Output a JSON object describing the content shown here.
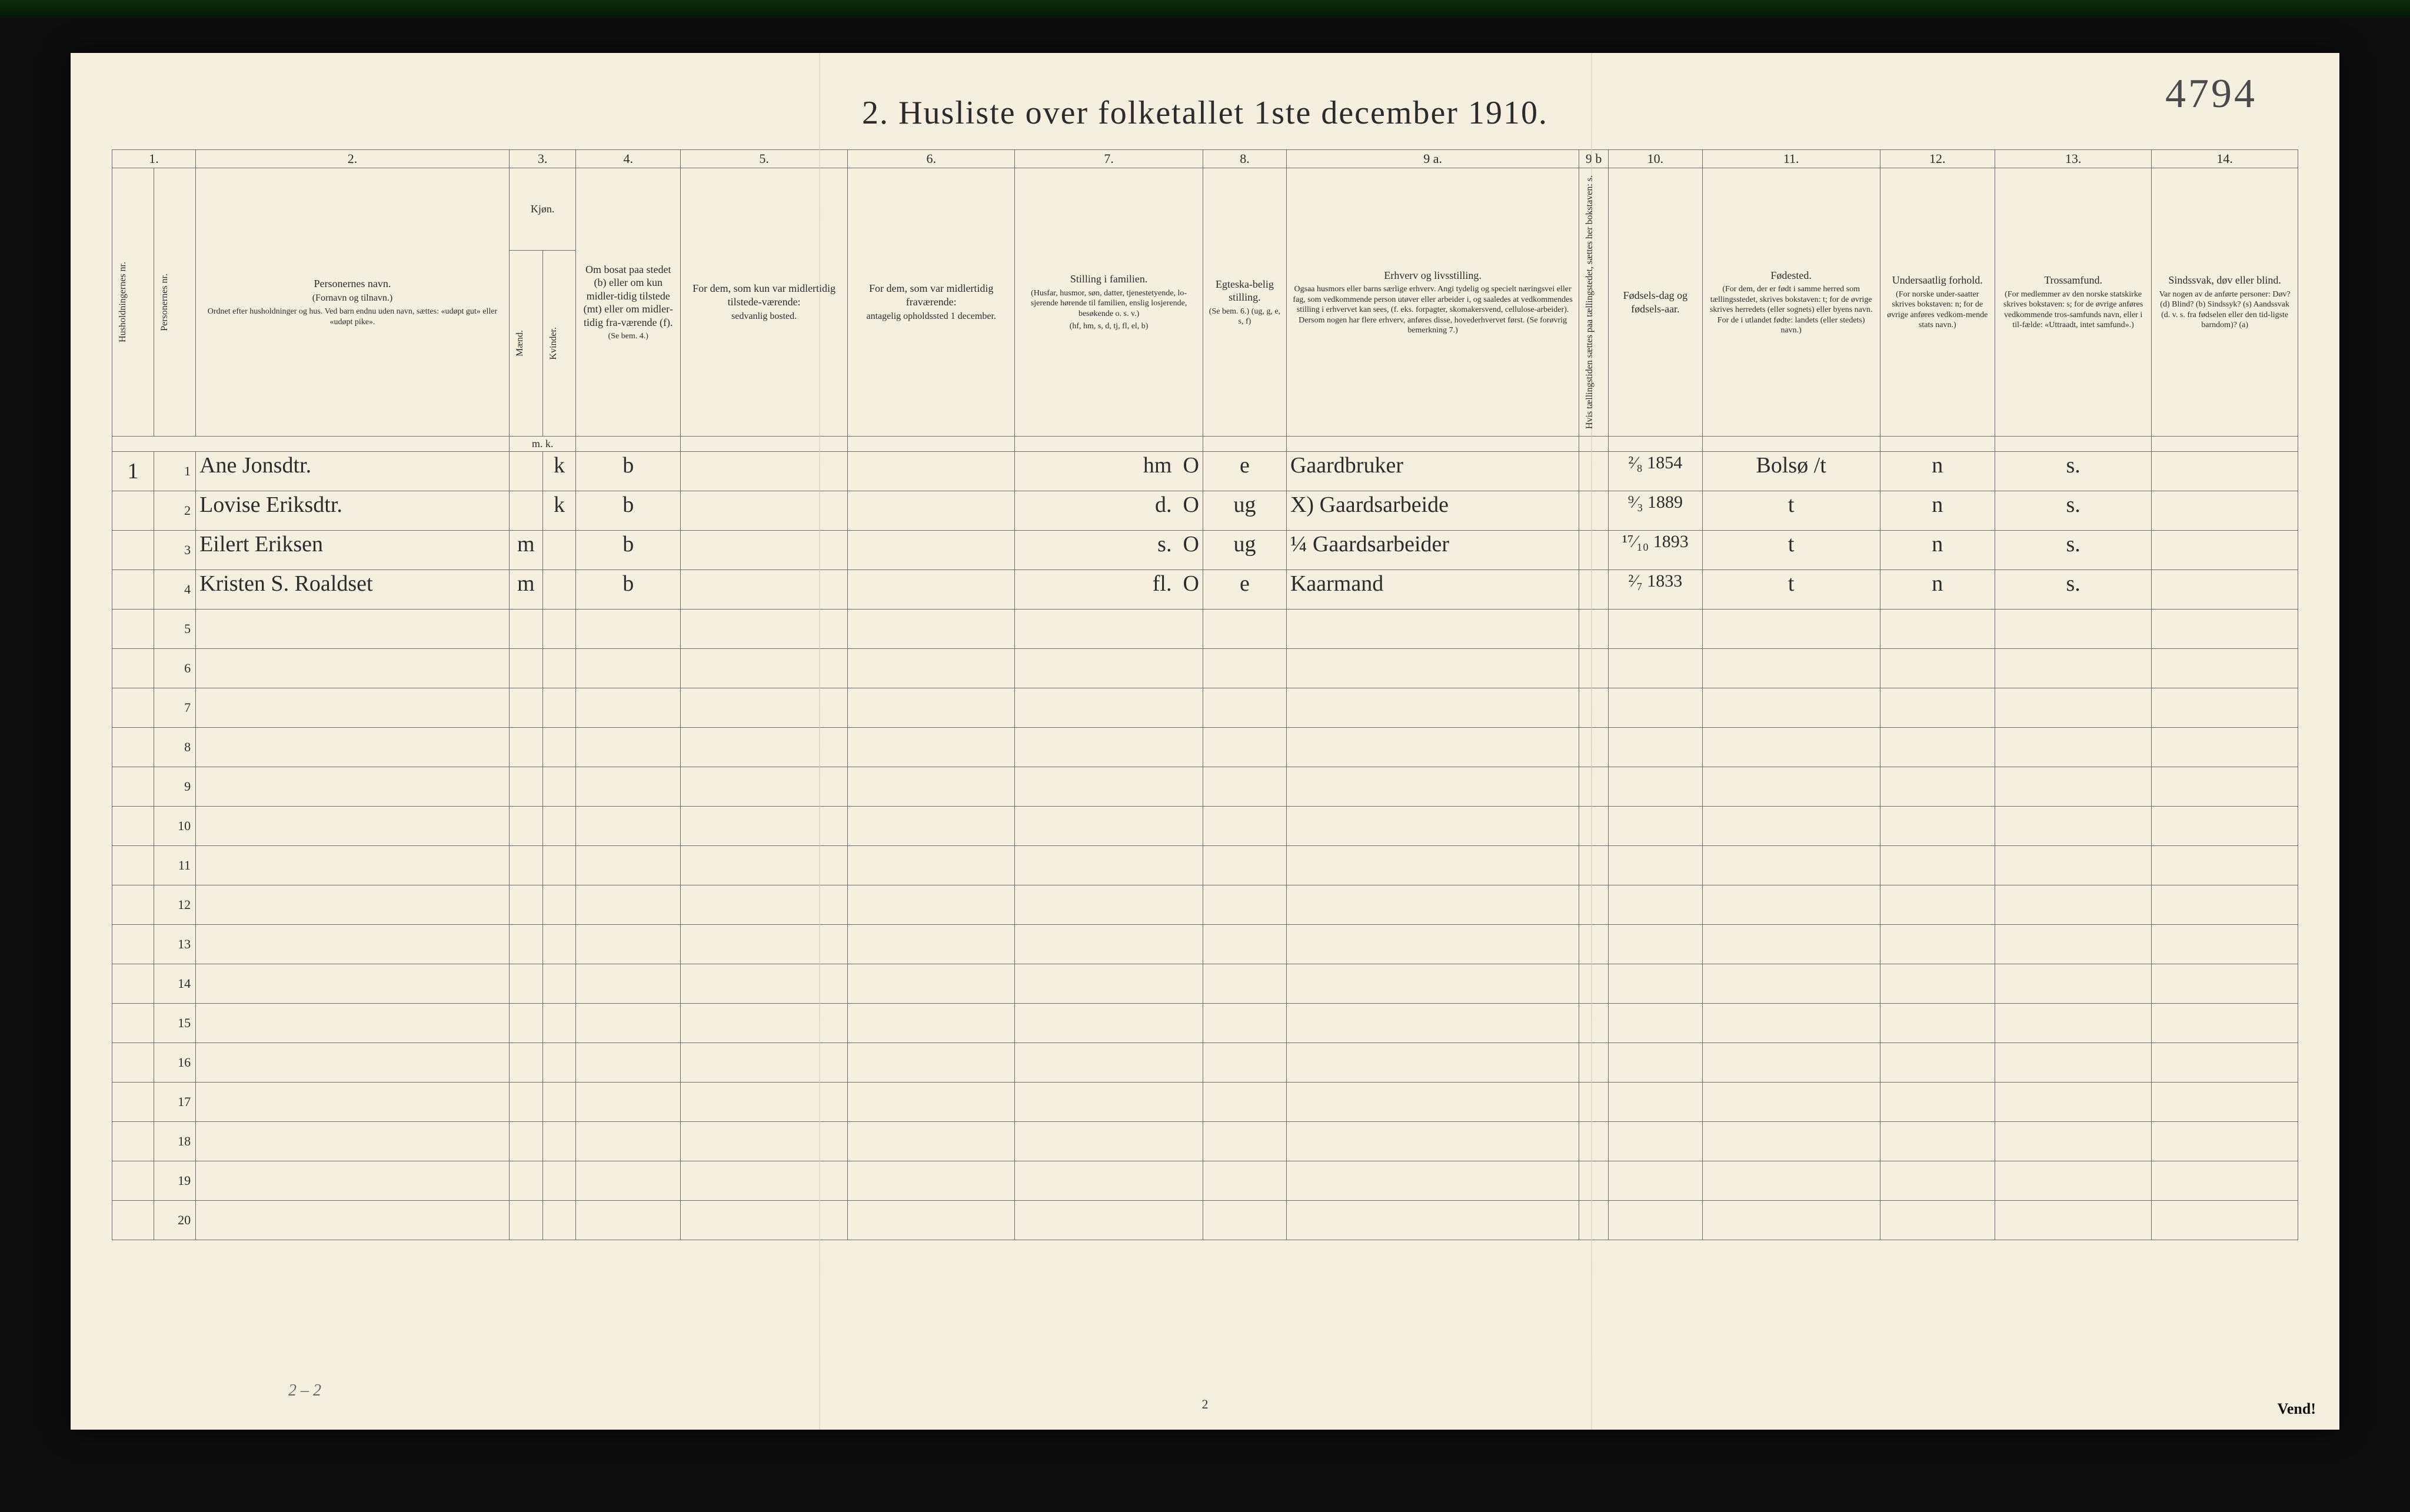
{
  "page": {
    "title": "2.  Husliste over folketallet 1ste december 1910.",
    "handnote_top_right": "4794",
    "foot_page_number": "2",
    "foot_pencil": "2 – 2",
    "vend": "Vend!"
  },
  "colnums": [
    "1.",
    "2.",
    "3.",
    "4.",
    "5.",
    "6.",
    "7.",
    "8.",
    "9 a.",
    "9 b",
    "10.",
    "11.",
    "12.",
    "13.",
    "14."
  ],
  "headers": {
    "h1": "Husholdningernes nr.",
    "h1b": "Personernes nr.",
    "h2": "Personernes navn.",
    "h2_sub1": "(Fornavn og tilnavn.)",
    "h2_sub2": "Ordnet efter husholdninger og hus. Ved barn endnu uden navn, sættes: «udøpt gut» eller «udøpt pike».",
    "h3": "Kjøn.",
    "h3_m": "Mænd.",
    "h3_k": "Kvinder.",
    "h3_mk": "m.  k.",
    "h4": "Om bosat paa stedet (b) eller om kun midler-tidig tilstede (mt) eller om midler-tidig fra-værende (f).",
    "h4_sub": "(Se bem. 4.)",
    "h5": "For dem, som kun var midlertidig tilstede-værende:",
    "h5_sub": "sedvanlig bosted.",
    "h6": "For dem, som var midlertidig fraværende:",
    "h6_sub": "antagelig opholdssted 1 december.",
    "h7": "Stilling i familien.",
    "h7_sub1": "(Husfar, husmor, søn, datter, tjenestetyende, lo-sjerende hørende til familien, enslig losjerende, besøkende o. s. v.)",
    "h7_sub2": "(hf, hm, s, d, tj, fl, el, b)",
    "h8": "Egteska-belig stilling.",
    "h8_sub": "(Se bem. 6.) (ug, g, e, s, f)",
    "h9a": "Erhverv og livsstilling.",
    "h9a_sub": "Ogsaa husmors eller barns særlige erhverv. Angi tydelig og specielt næringsvei eller fag, som vedkommende person utøver eller arbeider i, og saaledes at vedkommendes stilling i erhvervet kan sees, (f. eks. forpagter, skomakersvend, cellulose-arbeider). Dersom nogen har flere erhverv, anføres disse, hovederhvervet først.  (Se forøvrig bemerkning 7.)",
    "h9b": "Hvis tællingstiden sættes paa tællingstedet, sættes her bokstaven: s.",
    "h10": "Fødsels-dag og fødsels-aar.",
    "h11": "Fødested.",
    "h11_sub": "(For dem, der er født i samme herred som tællingsstedet, skrives bokstaven: t; for de øvrige skrives herredets (eller sognets) eller byens navn. For de i utlandet fødte: landets (eller stedets) navn.)",
    "h12": "Undersaatlig forhold.",
    "h12_sub": "(For norske under-saatter skrives bokstaven: n; for de øvrige anføres vedkom-mende stats navn.)",
    "h13": "Trossamfund.",
    "h13_sub": "(For medlemmer av den norske statskirke skrives bokstaven: s; for de øvrige anføres vedkommende tros-samfunds navn, eller i til-fælde: «Uttraadt, intet samfund».)",
    "h14": "Sindssvak, døv eller blind.",
    "h14_sub": "Var nogen av de anførte personer: Døv? (d) Blind? (b) Sindssyk? (s) Aandssvak (d. v. s. fra fødselen eller den tid-ligste barndom)? (a)"
  },
  "rows": [
    {
      "hh": "1",
      "pn": "1",
      "name": "Ane Jonsdtr.",
      "sex_m": "",
      "sex_k": "k",
      "bosat": "b",
      "col5": "",
      "col6": "",
      "famstilling": "hm",
      "famO": "O",
      "egte": "e",
      "erhverv": "Gaardbruker",
      "c9b": "",
      "fdato": "²⁄₈ 1854",
      "fsted": "Bolsø /t",
      "unders": "n",
      "tros": "s.",
      "c14": ""
    },
    {
      "hh": "",
      "pn": "2",
      "name": "Lovise Eriksdtr.",
      "sex_m": "",
      "sex_k": "k",
      "bosat": "b",
      "col5": "",
      "col6": "",
      "famstilling": "d.",
      "famO": "O",
      "egte": "ug",
      "erhverv": "X) Gaardsarbeide",
      "c9b": "",
      "fdato": "⁹⁄₃ 1889",
      "fsted": "t",
      "unders": "n",
      "tros": "s.",
      "c14": ""
    },
    {
      "hh": "",
      "pn": "3",
      "name": "Eilert Eriksen",
      "sex_m": "m",
      "sex_k": "",
      "bosat": "b",
      "col5": "",
      "col6": "",
      "famstilling": "s.",
      "famO": "O",
      "egte": "ug",
      "erhverv": "¼ Gaardsarbeider",
      "c9b": "",
      "fdato": "¹⁷⁄₁₀ 1893",
      "fsted": "t",
      "unders": "n",
      "tros": "s.",
      "c14": ""
    },
    {
      "hh": "",
      "pn": "4",
      "name": "Kristen S. Roaldset",
      "sex_m": "m",
      "sex_k": "",
      "bosat": "b",
      "col5": "",
      "col6": "",
      "famstilling": "fl.",
      "famO": "O",
      "egte": "e",
      "erhverv": "Kaarmand",
      "c9b": "",
      "fdato": "²⁄₇ 1833",
      "fsted": "t",
      "unders": "n",
      "tros": "s.",
      "c14": ""
    }
  ],
  "blank_rows": [
    5,
    6,
    7,
    8,
    9,
    10,
    11,
    12,
    13,
    14,
    15,
    16,
    17,
    18,
    19,
    20
  ]
}
